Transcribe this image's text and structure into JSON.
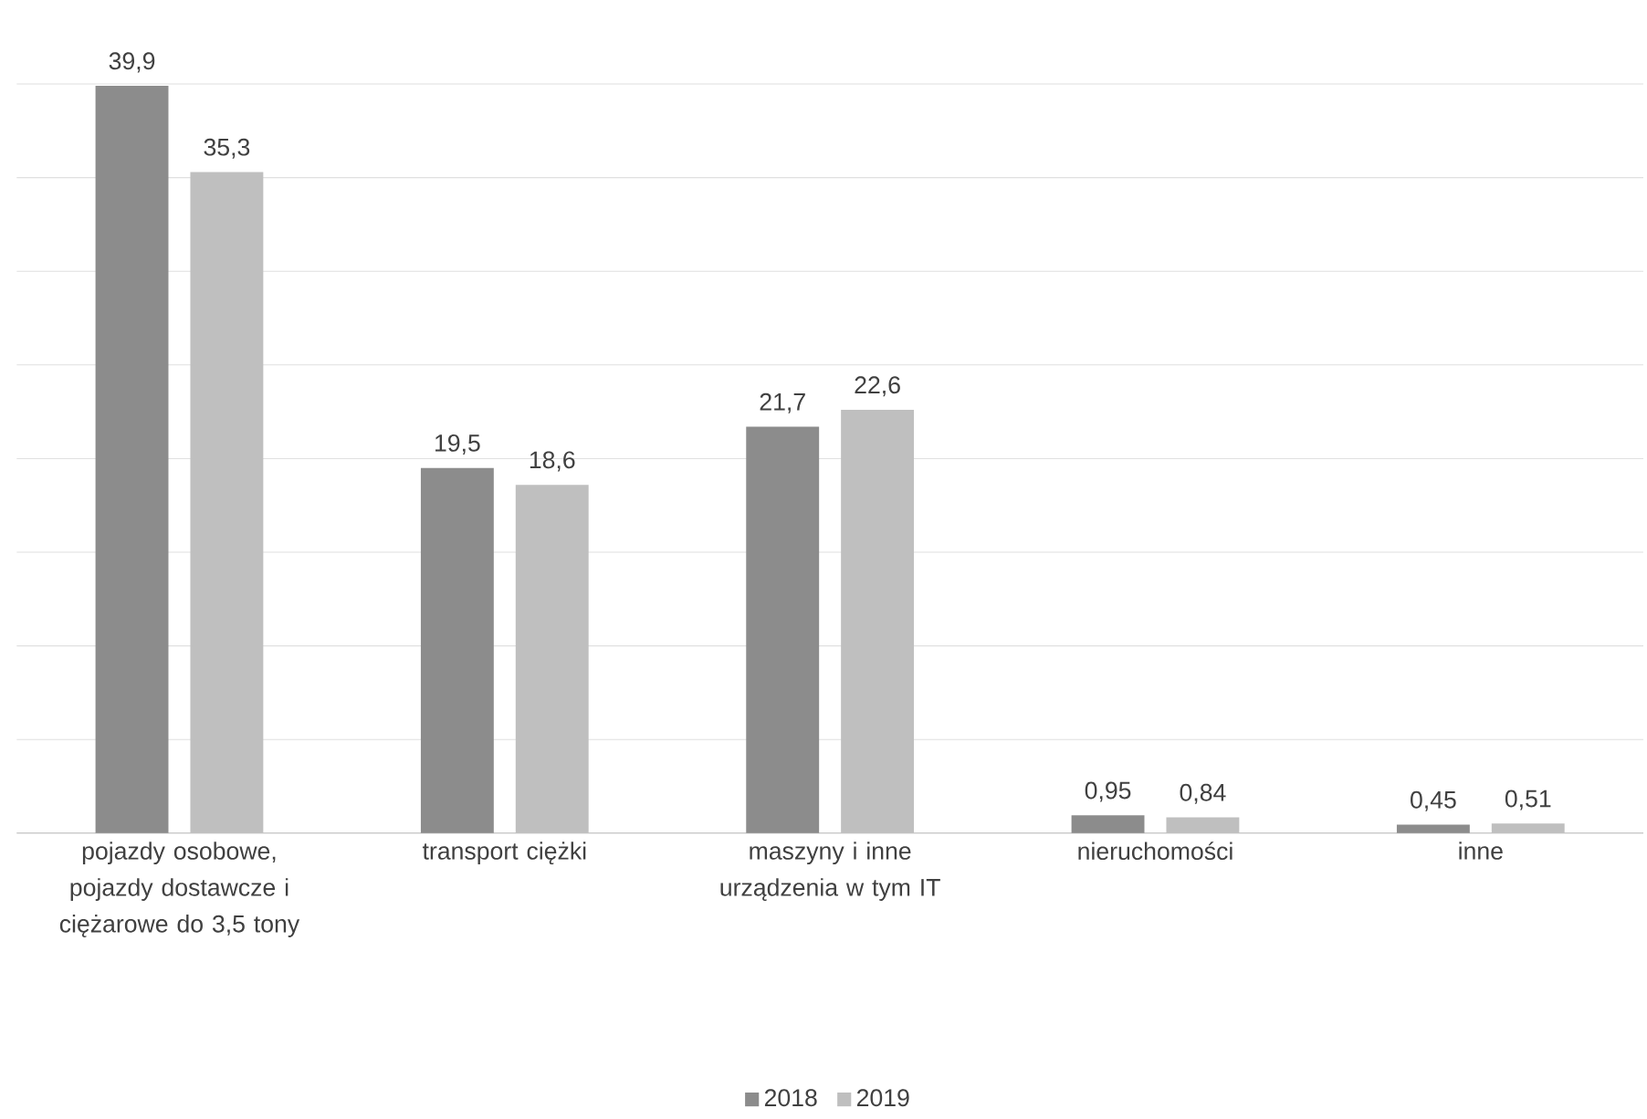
{
  "chart_data": {
    "type": "bar",
    "categories": [
      "pojazdy osobowe, pojazdy dostawcze i ciężarowe do 3,5 tony",
      "transport ciężki",
      "maszyny i inne urządzenia w tym IT",
      "nieruchomości",
      "inne"
    ],
    "series": [
      {
        "name": "2018",
        "color": "#8c8c8c",
        "values": [
          39.9,
          19.5,
          21.7,
          0.95,
          0.45
        ],
        "value_labels": [
          "39,9",
          "19,5",
          "21,7",
          "0,95",
          "0,45"
        ]
      },
      {
        "name": "2019",
        "color": "#bfbfbf",
        "values": [
          35.3,
          18.6,
          22.6,
          0.84,
          0.51
        ],
        "value_labels": [
          "35,3",
          "18,6",
          "22,6",
          "0,84",
          "0,51"
        ]
      }
    ],
    "grid": "y",
    "legend": "bottom",
    "tick_labels": "x"
  }
}
